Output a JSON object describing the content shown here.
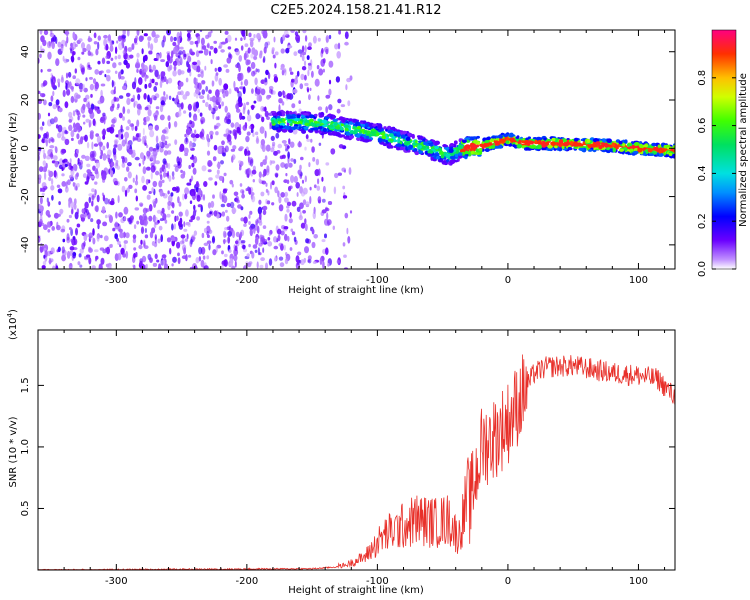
{
  "title": "C2E5.2024.158.21.41.R12",
  "chart_data": [
    {
      "type": "heatmap",
      "xlabel": "Height of straight line (km)",
      "ylabel": "Frequency (Hz)",
      "xlim": [
        -360,
        128
      ],
      "ylim": [
        -50,
        49
      ],
      "xticks": [
        -300,
        -200,
        -100,
        0,
        100
      ],
      "yticks": [
        -40,
        -20,
        0,
        20,
        40
      ],
      "colorbar": {
        "label": "Normalized spectral amplitude",
        "range": [
          0.0,
          1.0
        ],
        "ticks": [
          0.0,
          0.2,
          0.4,
          0.6,
          0.8
        ]
      },
      "noise_region_x": [
        -360,
        -120
      ],
      "ridge": [
        {
          "x": -180,
          "y": 11
        },
        {
          "x": -160,
          "y": 11
        },
        {
          "x": -140,
          "y": 10
        },
        {
          "x": -120,
          "y": 8
        },
        {
          "x": -100,
          "y": 6
        },
        {
          "x": -80,
          "y": 3
        },
        {
          "x": -60,
          "y": 0
        },
        {
          "x": -45,
          "y": -3
        },
        {
          "x": -35,
          "y": 0
        },
        {
          "x": -20,
          "y": 1
        },
        {
          "x": -5,
          "y": 3
        },
        {
          "x": 0,
          "y": 4
        },
        {
          "x": 10,
          "y": 2
        },
        {
          "x": 40,
          "y": 2
        },
        {
          "x": 80,
          "y": 1
        },
        {
          "x": 100,
          "y": 0
        },
        {
          "x": 128,
          "y": -1
        }
      ]
    },
    {
      "type": "line",
      "xlabel": "Height of straight line (km)",
      "ylabel": "SNR (10 * v/v)",
      "yscale_note": "(x10",
      "yscale_exp": "4",
      "yscale_close": ")",
      "xlim": [
        -360,
        128
      ],
      "ylim": [
        0,
        1.95
      ],
      "xticks": [
        -300,
        -200,
        -100,
        0,
        100
      ],
      "yticks": [
        0.5,
        1.0,
        1.5
      ],
      "ytick_labels": [
        "0.5",
        "1.0",
        "1.5"
      ],
      "color": "#e8302a",
      "trend": [
        {
          "x": -360,
          "y": 0.0
        },
        {
          "x": -150,
          "y": 0.01
        },
        {
          "x": -125,
          "y": 0.03
        },
        {
          "x": -110,
          "y": 0.08
        },
        {
          "x": -95,
          "y": 0.22
        },
        {
          "x": -70,
          "y": 0.32
        },
        {
          "x": -55,
          "y": 0.3
        },
        {
          "x": -45,
          "y": 0.32
        },
        {
          "x": -38,
          "y": 0.2
        },
        {
          "x": -30,
          "y": 0.5
        },
        {
          "x": -20,
          "y": 1.0
        },
        {
          "x": -10,
          "y": 1.08
        },
        {
          "x": 0,
          "y": 1.2
        },
        {
          "x": 10,
          "y": 1.4
        },
        {
          "x": 20,
          "y": 1.6
        },
        {
          "x": 30,
          "y": 1.65
        },
        {
          "x": 50,
          "y": 1.66
        },
        {
          "x": 80,
          "y": 1.6
        },
        {
          "x": 100,
          "y": 1.58
        },
        {
          "x": 115,
          "y": 1.55
        },
        {
          "x": 128,
          "y": 1.4
        }
      ]
    }
  ]
}
